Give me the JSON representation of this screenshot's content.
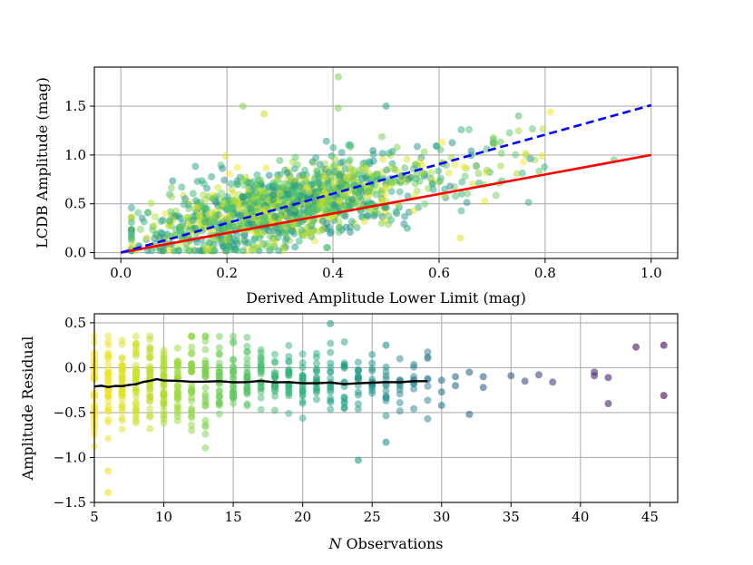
{
  "chart_data": [
    {
      "type": "scatter",
      "panel": "top",
      "xlabel": "Derived Amplitude Lower Limit (mag)",
      "ylabel": "LCDB Amplitude (mag)",
      "xlim": [
        -0.05,
        1.05
      ],
      "ylim": [
        -0.06,
        1.9
      ],
      "xticks": [
        0.0,
        0.2,
        0.4,
        0.6,
        0.8,
        1.0
      ],
      "xtick_labels": [
        "0.0",
        "0.2",
        "0.4",
        "0.6",
        "0.8",
        "1.0"
      ],
      "yticks": [
        0.0,
        0.5,
        1.0,
        1.5
      ],
      "ytick_labels": [
        "0.0",
        "0.5",
        "1.0",
        "1.5"
      ],
      "grid": true,
      "lines": [
        {
          "name": "one-to-one",
          "color": "#ff0000",
          "style": "solid",
          "x": [
            0.0,
            1.0
          ],
          "y": [
            0.0,
            1.0
          ]
        },
        {
          "name": "scaled-fit",
          "color": "#0000ff",
          "style": "dashed",
          "x": [
            0.0,
            1.0
          ],
          "y": [
            0.0,
            1.51
          ]
        }
      ],
      "scatter_description": "~1500 translucent points colored by number of observations (viridis); cloud spans x 0.02-0.95, y 0.02-1.8, concentrated near x 0.1-0.5, y 0.2-0.8",
      "outliers": [
        {
          "x": 0.41,
          "y": 1.8
        },
        {
          "x": 0.23,
          "y": 1.5
        },
        {
          "x": 0.27,
          "y": 1.42
        },
        {
          "x": 0.41,
          "y": 1.48
        },
        {
          "x": 0.5,
          "y": 1.5
        },
        {
          "x": 0.81,
          "y": 1.44
        },
        {
          "x": 0.75,
          "y": 1.4
        },
        {
          "x": 0.64,
          "y": 0.15
        },
        {
          "x": 0.54,
          "y": 0.25
        },
        {
          "x": 0.93,
          "y": 0.95
        }
      ]
    },
    {
      "type": "scatter",
      "panel": "bottom",
      "xlabel": "N Observations",
      "xlabel_italic_part": "N",
      "xlabel_rest": " Observations",
      "ylabel": "Amplitude Residual",
      "xlim": [
        5,
        47
      ],
      "ylim": [
        -1.5,
        0.6
      ],
      "xticks": [
        5,
        10,
        15,
        20,
        25,
        30,
        35,
        40,
        45
      ],
      "xtick_labels": [
        "5",
        "10",
        "15",
        "20",
        "25",
        "30",
        "35",
        "40",
        "45"
      ],
      "yticks": [
        -1.5,
        -1.0,
        -0.5,
        0.0,
        0.5
      ],
      "ytick_labels": [
        "−1.5",
        "−1.0",
        "−0.5",
        "0.0",
        "0.5"
      ],
      "grid": true,
      "running_mean": {
        "color": "#000000",
        "x": [
          5,
          5.5,
          6,
          6.5,
          7,
          7.5,
          8,
          8.5,
          9,
          9.5,
          10,
          11,
          12,
          13,
          14,
          15,
          16,
          17,
          18,
          19,
          20,
          21,
          22,
          23,
          24,
          25,
          26,
          27,
          28,
          29
        ],
        "y": [
          -0.21,
          -0.2,
          -0.22,
          -0.2,
          -0.21,
          -0.19,
          -0.18,
          -0.16,
          -0.15,
          -0.13,
          -0.14,
          -0.15,
          -0.16,
          -0.15,
          -0.15,
          -0.16,
          -0.16,
          -0.15,
          -0.16,
          -0.16,
          -0.17,
          -0.17,
          -0.17,
          -0.18,
          -0.17,
          -0.17,
          -0.16,
          -0.16,
          -0.15,
          -0.15
        ]
      },
      "sparse_points": [
        {
          "x": 30,
          "y": -0.14
        },
        {
          "x": 30,
          "y": -0.27
        },
        {
          "x": 30,
          "y": -0.42
        },
        {
          "x": 31,
          "y": -0.1
        },
        {
          "x": 31,
          "y": -0.2
        },
        {
          "x": 32,
          "y": -0.05
        },
        {
          "x": 32,
          "y": -0.52
        },
        {
          "x": 33,
          "y": -0.1
        },
        {
          "x": 33,
          "y": -0.22
        },
        {
          "x": 35,
          "y": -0.09
        },
        {
          "x": 36,
          "y": -0.15
        },
        {
          "x": 37,
          "y": -0.08
        },
        {
          "x": 38,
          "y": -0.16
        },
        {
          "x": 41,
          "y": -0.05
        },
        {
          "x": 41,
          "y": -0.09
        },
        {
          "x": 42,
          "y": -0.11
        },
        {
          "x": 42,
          "y": -0.4
        },
        {
          "x": 44,
          "y": 0.23
        },
        {
          "x": 46,
          "y": 0.25
        },
        {
          "x": 46,
          "y": -0.31
        },
        {
          "x": 22,
          "y": 0.49
        },
        {
          "x": 26,
          "y": 0.25
        },
        {
          "x": 24,
          "y": -1.03
        },
        {
          "x": 26,
          "y": -0.83
        },
        {
          "x": 6,
          "y": -1.39
        },
        {
          "x": 6,
          "y": -1.15
        }
      ],
      "scatter_description": "points colored by N (viridis, yellow at N=5 to purple at N=46), dense vertical stripes at integer N from 5 to 29"
    }
  ]
}
